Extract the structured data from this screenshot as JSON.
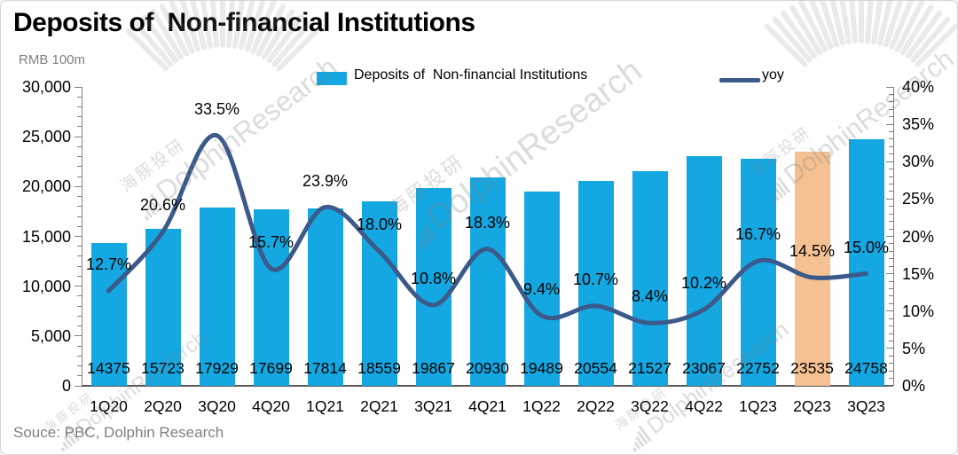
{
  "header": {
    "title": "Deposits of  Non-financial Institutions",
    "unit_label": "RMB 100m"
  },
  "legend": {
    "items": [
      {
        "label": "Deposits of  Non-financial Institutions",
        "swatch": "bar",
        "color": "#14a7e1"
      },
      {
        "label": "yoy",
        "swatch": "line",
        "color": "#3b5a8a"
      }
    ]
  },
  "footer": {
    "source_note": "Souce: PBC, Dolphin Research"
  },
  "watermark": {
    "cn": "海豚投研",
    "en": "DolphinResearch"
  },
  "chart_data": {
    "type": "bar+line",
    "title": "Deposits of  Non-financial Institutions",
    "unit": "RMB 100m",
    "grid": "off",
    "legend_position": "top",
    "categories": [
      "1Q20",
      "2Q20",
      "3Q20",
      "4Q20",
      "1Q21",
      "2Q21",
      "3Q21",
      "4Q21",
      "1Q22",
      "2Q22",
      "3Q22",
      "4Q22",
      "1Q23",
      "2Q23",
      "3Q23"
    ],
    "series": [
      {
        "name": "Deposits of  Non-financial Institutions",
        "type": "bar",
        "axis": "left",
        "color": "#14a7e1",
        "highlight": {
          "index": 13,
          "category": "2Q23",
          "color": "#f5c192"
        },
        "values": [
          14375,
          15723,
          17929,
          17699,
          17814,
          18559,
          19867,
          20930,
          19489,
          20554,
          21527,
          23067,
          22752,
          23535,
          24758
        ],
        "value_labels": [
          "14375",
          "15723",
          "17929",
          "17699",
          "17814",
          "18559",
          "19867",
          "20930",
          "19489",
          "20554",
          "21527",
          "23067",
          "22752",
          "23535",
          "24758"
        ]
      },
      {
        "name": "yoy",
        "type": "line",
        "axis": "right",
        "color": "#3b5a8a",
        "values_percent": [
          12.7,
          20.6,
          33.5,
          15.7,
          23.9,
          18.0,
          10.8,
          18.3,
          9.4,
          10.7,
          8.4,
          10.2,
          16.7,
          14.5,
          15.0
        ],
        "point_labels": [
          "12.7%",
          "20.6%",
          "33.5%",
          "15.7%",
          "23.9%",
          "18.0%",
          "10.8%",
          "18.3%",
          "9.4%",
          "10.7%",
          "8.4%",
          "10.2%",
          "16.7%",
          "14.5%",
          "15.0%"
        ]
      }
    ],
    "left_axis": {
      "label": "RMB 100m",
      "min": 0,
      "max": 30000,
      "major_step": 5000,
      "minor_step": 1000,
      "tick_labels": [
        "30,000",
        "25,000",
        "20,000",
        "15,000",
        "10,000",
        "5,000",
        "0"
      ]
    },
    "right_axis": {
      "min_pct": 0,
      "max_pct": 40,
      "major_step_pct": 5,
      "minor_step_pct": 1,
      "tick_labels": [
        "40%",
        "35%",
        "30%",
        "25%",
        "20%",
        "15%",
        "10%",
        "5%",
        "0%"
      ]
    }
  }
}
